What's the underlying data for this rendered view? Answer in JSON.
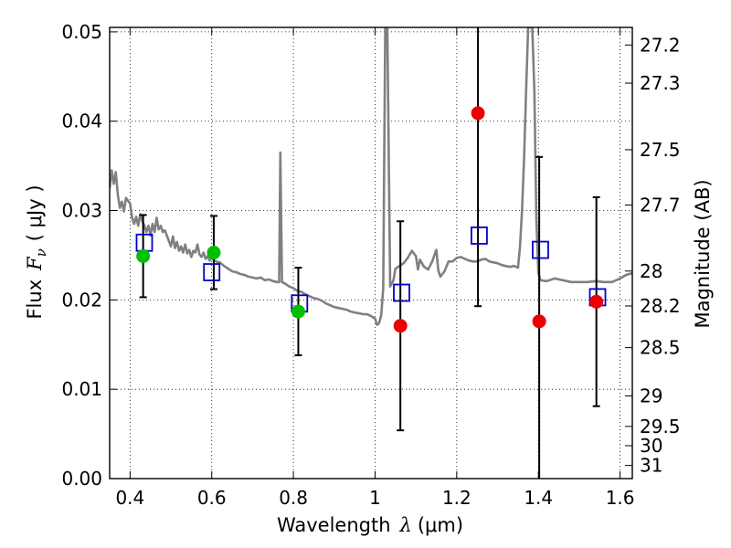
{
  "chart_data": {
    "type": "scatter",
    "xlabel_main": "Wavelength",
    "xlabel_symbol": "λ",
    "xlabel_unit": "(μm)",
    "ylabel_main": "Flux",
    "ylabel_symbol": "F",
    "ylabel_sub": "ν",
    "ylabel_unit": "( μJy )",
    "y2label": "Magnitude (AB)",
    "xlim": [
      0.35,
      1.63
    ],
    "ylim": [
      0.0,
      0.0505
    ],
    "grid": true,
    "x_ticks": [
      0.4,
      0.6,
      0.8,
      1.0,
      1.2,
      1.4,
      1.6
    ],
    "x_tick_labels": [
      "0.4",
      "0.6",
      "0.8",
      "1",
      "1.2",
      "1.4",
      "1.6"
    ],
    "y_ticks": [
      0.0,
      0.01,
      0.02,
      0.03,
      0.04,
      0.05
    ],
    "y_tick_labels": [
      "0.00",
      "0.01",
      "0.02",
      "0.03",
      "0.04",
      "0.05"
    ],
    "y2_ticks": [
      {
        "label": "27.2",
        "flux": 0.04853
      },
      {
        "label": "27.3",
        "flux": 0.04426
      },
      {
        "label": "27.5",
        "flux": 0.03681
      },
      {
        "label": "27.7",
        "flux": 0.03062
      },
      {
        "label": "28",
        "flux": 0.02323
      },
      {
        "label": "28.2",
        "flux": 0.01932
      },
      {
        "label": "28.5",
        "flux": 0.01466
      },
      {
        "label": "29",
        "flux": 0.00925
      },
      {
        "label": "29.5",
        "flux": 0.00584
      },
      {
        "label": "30",
        "flux": 0.00368
      },
      {
        "label": "31",
        "flux": 0.00147
      }
    ],
    "colors": {
      "template": "#808080",
      "model": "#0000cc",
      "detection": "#00c000",
      "nondetection": "#ee0000",
      "errorbar": "#000000"
    },
    "series": [
      {
        "name": "template spectrum",
        "kind": "line",
        "points": [
          [
            0.35,
            0.0325
          ],
          [
            0.355,
            0.0345
          ],
          [
            0.36,
            0.033
          ],
          [
            0.365,
            0.0343
          ],
          [
            0.37,
            0.0318
          ],
          [
            0.375,
            0.0303
          ],
          [
            0.38,
            0.031
          ],
          [
            0.385,
            0.0299
          ],
          [
            0.39,
            0.0314
          ],
          [
            0.395,
            0.0311
          ],
          [
            0.4,
            0.0308
          ],
          [
            0.405,
            0.0292
          ],
          [
            0.41,
            0.0285
          ],
          [
            0.415,
            0.0293
          ],
          [
            0.42,
            0.0283
          ],
          [
            0.425,
            0.0296
          ],
          [
            0.43,
            0.0288
          ],
          [
            0.435,
            0.0283
          ],
          [
            0.44,
            0.0276
          ],
          [
            0.445,
            0.0283
          ],
          [
            0.45,
            0.0272
          ],
          [
            0.455,
            0.0285
          ],
          [
            0.46,
            0.0276
          ],
          [
            0.465,
            0.0292
          ],
          [
            0.47,
            0.0279
          ],
          [
            0.475,
            0.0283
          ],
          [
            0.48,
            0.0276
          ],
          [
            0.485,
            0.0278
          ],
          [
            0.49,
            0.0272
          ],
          [
            0.495,
            0.0266
          ],
          [
            0.5,
            0.026
          ],
          [
            0.505,
            0.0271
          ],
          [
            0.51,
            0.0258
          ],
          [
            0.515,
            0.0265
          ],
          [
            0.52,
            0.0255
          ],
          [
            0.525,
            0.026
          ],
          [
            0.53,
            0.0253
          ],
          [
            0.535,
            0.0262
          ],
          [
            0.54,
            0.0252
          ],
          [
            0.545,
            0.0256
          ],
          [
            0.55,
            0.0248
          ],
          [
            0.555,
            0.0255
          ],
          [
            0.56,
            0.0253
          ],
          [
            0.565,
            0.0262
          ],
          [
            0.57,
            0.0251
          ],
          [
            0.575,
            0.0248
          ],
          [
            0.58,
            0.0253
          ],
          [
            0.585,
            0.0246
          ],
          [
            0.59,
            0.0249
          ],
          [
            0.595,
            0.0244
          ],
          [
            0.6,
            0.0247
          ],
          [
            0.61,
            0.0243
          ],
          [
            0.62,
            0.0242
          ],
          [
            0.63,
            0.0238
          ],
          [
            0.64,
            0.0235
          ],
          [
            0.65,
            0.0232
          ],
          [
            0.66,
            0.0231
          ],
          [
            0.67,
            0.0229
          ],
          [
            0.68,
            0.0228
          ],
          [
            0.69,
            0.0226
          ],
          [
            0.7,
            0.0225
          ],
          [
            0.71,
            0.0224
          ],
          [
            0.72,
            0.0225
          ],
          [
            0.73,
            0.0222
          ],
          [
            0.74,
            0.0223
          ],
          [
            0.75,
            0.0221
          ],
          [
            0.76,
            0.022
          ],
          [
            0.765,
            0.022
          ],
          [
            0.768,
            0.0365
          ],
          [
            0.772,
            0.022
          ],
          [
            0.78,
            0.0218
          ],
          [
            0.79,
            0.0215
          ],
          [
            0.8,
            0.0213
          ],
          [
            0.81,
            0.021
          ],
          [
            0.82,
            0.0209
          ],
          [
            0.83,
            0.0206
          ],
          [
            0.84,
            0.0204
          ],
          [
            0.85,
            0.0202
          ],
          [
            0.86,
            0.0201
          ],
          [
            0.87,
            0.0199
          ],
          [
            0.88,
            0.0196
          ],
          [
            0.89,
            0.0194
          ],
          [
            0.9,
            0.0192
          ],
          [
            0.91,
            0.0191
          ],
          [
            0.92,
            0.019
          ],
          [
            0.93,
            0.0189
          ],
          [
            0.94,
            0.0187
          ],
          [
            0.95,
            0.0186
          ],
          [
            0.96,
            0.0185
          ],
          [
            0.97,
            0.0184
          ],
          [
            0.98,
            0.0184
          ],
          [
            0.99,
            0.0182
          ],
          [
            1.0,
            0.0179
          ],
          [
            1.005,
            0.0172
          ],
          [
            1.01,
            0.0174
          ],
          [
            1.015,
            0.0183
          ],
          [
            1.02,
            0.0213
          ],
          [
            1.025,
            0.0505
          ],
          [
            1.03,
            0.0505
          ],
          [
            1.037,
            0.0215
          ],
          [
            1.045,
            0.0222
          ],
          [
            1.05,
            0.0235
          ],
          [
            1.06,
            0.0238
          ],
          [
            1.07,
            0.0241
          ],
          [
            1.08,
            0.0247
          ],
          [
            1.09,
            0.0255
          ],
          [
            1.1,
            0.0249
          ],
          [
            1.105,
            0.0234
          ],
          [
            1.11,
            0.0245
          ],
          [
            1.12,
            0.0237
          ],
          [
            1.13,
            0.0234
          ],
          [
            1.14,
            0.0243
          ],
          [
            1.15,
            0.0256
          ],
          [
            1.155,
            0.0233
          ],
          [
            1.16,
            0.0226
          ],
          [
            1.17,
            0.0232
          ],
          [
            1.18,
            0.0243
          ],
          [
            1.19,
            0.0243
          ],
          [
            1.2,
            0.0247
          ],
          [
            1.21,
            0.0248
          ],
          [
            1.22,
            0.0246
          ],
          [
            1.23,
            0.0244
          ],
          [
            1.24,
            0.0243
          ],
          [
            1.25,
            0.0243
          ],
          [
            1.26,
            0.0245
          ],
          [
            1.27,
            0.0246
          ],
          [
            1.28,
            0.0243
          ],
          [
            1.29,
            0.0242
          ],
          [
            1.3,
            0.0241
          ],
          [
            1.31,
            0.0239
          ],
          [
            1.32,
            0.0238
          ],
          [
            1.33,
            0.0237
          ],
          [
            1.34,
            0.0238
          ],
          [
            1.35,
            0.0236
          ],
          [
            1.355,
            0.026
          ],
          [
            1.36,
            0.03
          ],
          [
            1.365,
            0.036
          ],
          [
            1.37,
            0.0435
          ],
          [
            1.375,
            0.0505
          ],
          [
            1.385,
            0.0505
          ],
          [
            1.39,
            0.0435
          ],
          [
            1.395,
            0.029
          ],
          [
            1.4,
            0.023
          ],
          [
            1.405,
            0.0222
          ],
          [
            1.42,
            0.0221
          ],
          [
            1.44,
            0.0224
          ],
          [
            1.46,
            0.0222
          ],
          [
            1.48,
            0.022
          ],
          [
            1.5,
            0.022
          ],
          [
            1.52,
            0.022
          ],
          [
            1.54,
            0.0221
          ],
          [
            1.56,
            0.022
          ],
          [
            1.58,
            0.022
          ],
          [
            1.6,
            0.0224
          ],
          [
            1.615,
            0.0228
          ],
          [
            1.63,
            0.023
          ]
        ]
      },
      {
        "name": "template band fluxes",
        "kind": "open-square",
        "x": [
          0.435,
          0.6,
          0.815,
          1.065,
          1.255,
          1.405,
          1.545
        ],
        "y": [
          0.0264,
          0.0231,
          0.0196,
          0.0208,
          0.0272,
          0.0256,
          0.0203
        ]
      },
      {
        "name": "detections",
        "kind": "filled-circle",
        "x": [
          0.432,
          0.605,
          0.812
        ],
        "y": [
          0.0249,
          0.0253,
          0.0187
        ],
        "yerr_low": [
          0.0046,
          0.0041,
          0.0049
        ],
        "yerr_high": [
          0.0046,
          0.0041,
          0.0049
        ]
      },
      {
        "name": "non-detections",
        "kind": "filled-circle",
        "x": [
          1.062,
          1.252,
          1.402,
          1.542
        ],
        "y": [
          0.0171,
          0.0409,
          0.0176,
          0.0198
        ],
        "yerr_low": [
          0.0117,
          0.0216,
          0.0176,
          0.0117
        ],
        "yerr_high": [
          0.0117,
          0.0216,
          0.0184,
          0.0117
        ]
      }
    ]
  }
}
